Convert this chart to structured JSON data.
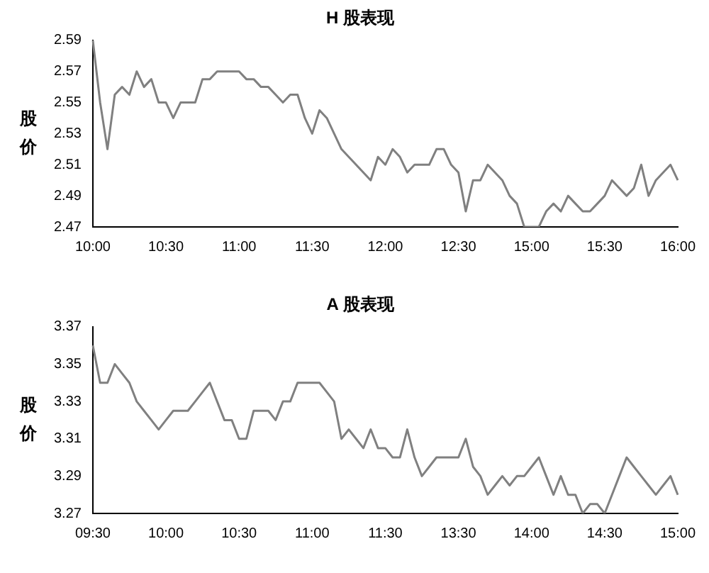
{
  "chart_data": [
    {
      "type": "line",
      "title": "H 股表现",
      "ylabel": "股价",
      "categories": [
        "10:00",
        null,
        null,
        null,
        null,
        null,
        null,
        null,
        null,
        null,
        "10:30",
        null,
        null,
        null,
        null,
        null,
        null,
        null,
        null,
        null,
        "11:00",
        null,
        null,
        null,
        null,
        null,
        null,
        null,
        null,
        null,
        "11:30",
        null,
        null,
        null,
        null,
        null,
        null,
        null,
        null,
        null,
        "12:00",
        null,
        null,
        null,
        null,
        null,
        null,
        null,
        null,
        null,
        "12:30",
        null,
        null,
        null,
        null,
        null,
        null,
        null,
        null,
        null,
        "15:00",
        null,
        null,
        null,
        null,
        null,
        null,
        null,
        null,
        null,
        "15:30",
        null,
        null,
        null,
        null,
        null,
        null,
        null,
        null,
        null,
        "16:00"
      ],
      "series": [
        {
          "color": "#808080",
          "values": [
            2.59,
            2.55,
            2.52,
            2.555,
            2.56,
            2.555,
            2.57,
            2.56,
            2.565,
            2.55,
            2.55,
            2.54,
            2.55,
            2.55,
            2.55,
            2.565,
            2.565,
            2.57,
            2.57,
            2.57,
            2.57,
            2.565,
            2.565,
            2.56,
            2.56,
            2.555,
            2.55,
            2.555,
            2.555,
            2.54,
            2.53,
            2.545,
            2.54,
            2.53,
            2.52,
            2.515,
            2.51,
            2.505,
            2.5,
            2.515,
            2.51,
            2.52,
            2.515,
            2.505,
            2.51,
            2.51,
            2.51,
            2.52,
            2.52,
            2.51,
            2.505,
            2.48,
            2.5,
            2.5,
            2.51,
            2.505,
            2.5,
            2.49,
            2.485,
            2.47,
            2.47,
            2.47,
            2.48,
            2.485,
            2.48,
            2.49,
            2.485,
            2.48,
            2.48,
            2.485,
            2.49,
            2.5,
            2.495,
            2.49,
            2.495,
            2.51,
            2.49,
            2.5,
            2.505,
            2.51,
            2.5
          ]
        }
      ],
      "ylim": [
        2.47,
        2.59
      ],
      "yticks": [
        2.47,
        2.49,
        2.51,
        2.53,
        2.55,
        2.57,
        2.59
      ],
      "grid": false,
      "legend": false,
      "marker": "none",
      "line_style": "solid"
    },
    {
      "type": "line",
      "title": "A 股表现",
      "ylabel": "股价",
      "categories": [
        "09:30",
        null,
        null,
        null,
        null,
        null,
        null,
        null,
        null,
        null,
        "10:00",
        null,
        null,
        null,
        null,
        null,
        null,
        null,
        null,
        null,
        "10:30",
        null,
        null,
        null,
        null,
        null,
        null,
        null,
        null,
        null,
        "11:00",
        null,
        null,
        null,
        null,
        null,
        null,
        null,
        null,
        null,
        "11:30",
        null,
        null,
        null,
        null,
        null,
        null,
        null,
        null,
        null,
        "13:30",
        null,
        null,
        null,
        null,
        null,
        null,
        null,
        null,
        null,
        "14:00",
        null,
        null,
        null,
        null,
        null,
        null,
        null,
        null,
        null,
        "14:30",
        null,
        null,
        null,
        null,
        null,
        null,
        null,
        null,
        null,
        "15:00"
      ],
      "series": [
        {
          "color": "#808080",
          "values": [
            3.36,
            3.34,
            3.34,
            3.35,
            3.345,
            3.34,
            3.33,
            3.325,
            3.32,
            3.315,
            3.32,
            3.325,
            3.325,
            3.325,
            3.33,
            3.335,
            3.34,
            3.33,
            3.32,
            3.32,
            3.31,
            3.31,
            3.325,
            3.325,
            3.325,
            3.32,
            3.33,
            3.33,
            3.34,
            3.34,
            3.34,
            3.34,
            3.335,
            3.33,
            3.31,
            3.315,
            3.31,
            3.305,
            3.315,
            3.305,
            3.305,
            3.3,
            3.3,
            3.315,
            3.3,
            3.29,
            3.295,
            3.3,
            3.3,
            3.3,
            3.3,
            3.31,
            3.295,
            3.29,
            3.28,
            3.285,
            3.29,
            3.285,
            3.29,
            3.29,
            3.295,
            3.3,
            3.29,
            3.28,
            3.29,
            3.28,
            3.28,
            3.27,
            3.275,
            3.275,
            3.27,
            3.28,
            3.29,
            3.3,
            3.295,
            3.29,
            3.285,
            3.28,
            3.285,
            3.29,
            3.28
          ]
        }
      ],
      "ylim": [
        3.27,
        3.37
      ],
      "yticks": [
        3.27,
        3.29,
        3.31,
        3.33,
        3.35,
        3.37
      ],
      "grid": false,
      "legend": false,
      "marker": "none",
      "line_style": "solid"
    }
  ]
}
